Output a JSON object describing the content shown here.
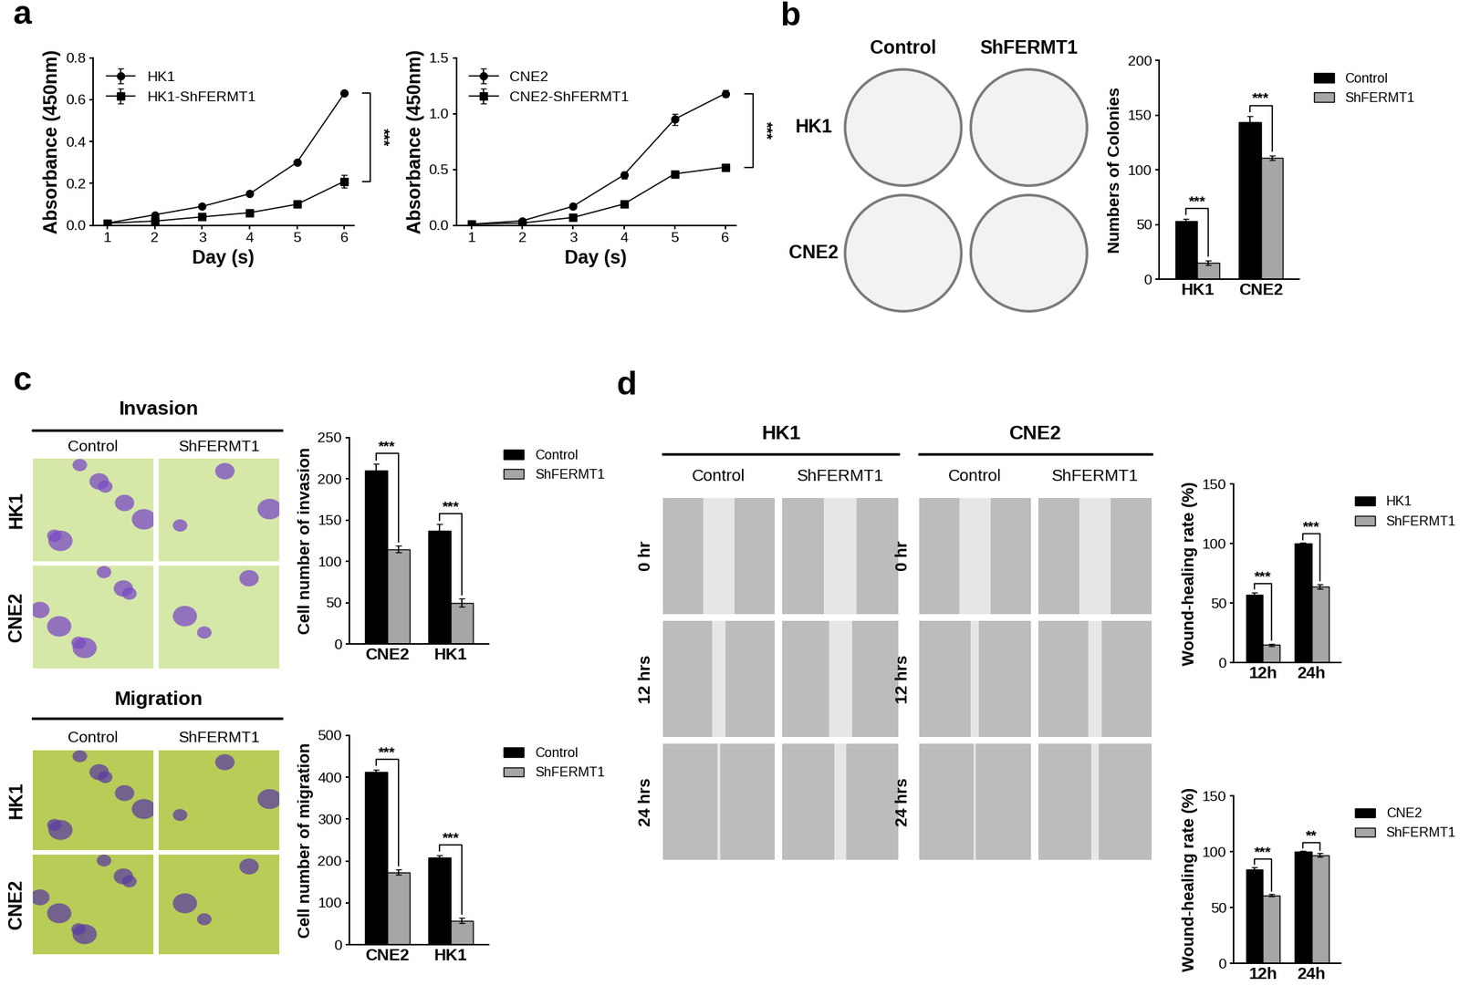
{
  "chart_data": [
    {
      "type": "line",
      "xlabel": "Day (s)",
      "ylabel": "Absorbance (450nm)",
      "x": [
        1,
        2,
        3,
        4,
        5,
        6
      ],
      "series": [
        {
          "name": "HK1",
          "color": "#000000",
          "marker": "circle",
          "values": [
            0.01,
            0.05,
            0.09,
            0.15,
            0.3,
            0.63
          ],
          "errors": [
            0,
            0,
            0,
            0,
            0.005,
            0.005
          ]
        },
        {
          "name": "HK1-ShFERMT1",
          "color": "#000000",
          "marker": "square",
          "values": [
            0.01,
            0.02,
            0.04,
            0.06,
            0.1,
            0.21
          ],
          "errors": [
            0,
            0,
            0,
            0,
            0,
            0.03
          ]
        }
      ],
      "xlim": [
        0.7,
        6.2
      ],
      "xticks": [
        1,
        2,
        3,
        4,
        5,
        6
      ],
      "ylim": [
        0,
        0.8
      ],
      "yticks": [
        {
          "value": 0,
          "label": "0.0"
        },
        {
          "value": 0.2,
          "label": "0.2"
        },
        {
          "value": 0.4,
          "label": "0.4"
        },
        {
          "value": 0.6,
          "label": "0.6"
        },
        {
          "value": 0.8,
          "label": "0.8"
        }
      ],
      "legend": "upper left",
      "significance": "***"
    },
    {
      "type": "line",
      "xlabel": "Day (s)",
      "ylabel": "Absorbance (450nm)",
      "x": [
        1,
        2,
        3,
        4,
        5,
        6
      ],
      "series": [
        {
          "name": "CNE2",
          "color": "#000000",
          "marker": "circle",
          "values": [
            0.01,
            0.04,
            0.17,
            0.45,
            0.95,
            1.18
          ],
          "errors": [
            0,
            0,
            0.01,
            0.03,
            0.05,
            0.03
          ]
        },
        {
          "name": "CNE2-ShFERMT1",
          "color": "#000000",
          "marker": "square",
          "values": [
            0.01,
            0.02,
            0.07,
            0.19,
            0.46,
            0.52
          ],
          "errors": [
            0,
            0,
            0,
            0.01,
            0.01,
            0.01
          ]
        }
      ],
      "xlim": [
        0.7,
        6.2
      ],
      "xticks": [
        1,
        2,
        3,
        4,
        5,
        6
      ],
      "ylim": [
        0,
        1.5
      ],
      "yticks": [
        {
          "value": 0,
          "label": "0.0"
        },
        {
          "value": 0.5,
          "label": "0.5"
        },
        {
          "value": 1.0,
          "label": "1.0"
        },
        {
          "value": 1.5,
          "label": "1.5"
        }
      ],
      "legend": "upper left",
      "significance": "***"
    },
    {
      "type": "bar",
      "ylabel": "Numbers of Colonies",
      "categories": [
        "HK1",
        "CNE2"
      ],
      "series": [
        {
          "name": "Control",
          "color": "#000000",
          "values": [
            53,
            144
          ],
          "errors": [
            2,
            5
          ]
        },
        {
          "name": "ShFERMT1",
          "color": "#a6a6a6",
          "values": [
            15,
            111
          ],
          "errors": [
            2,
            2
          ]
        }
      ],
      "ylim": [
        0,
        200
      ],
      "yticks": [
        0,
        50,
        100,
        150,
        200
      ],
      "legend": "right",
      "significance": [
        "***",
        "***"
      ]
    },
    {
      "type": "bar",
      "ylabel": "Cell number of invasion",
      "categories": [
        "CNE2",
        "HK1"
      ],
      "series": [
        {
          "name": "Control",
          "color": "#000000",
          "values": [
            210,
            137
          ],
          "errors": [
            8,
            8
          ]
        },
        {
          "name": "ShFERMT1",
          "color": "#a6a6a6",
          "values": [
            115,
            50
          ],
          "errors": [
            4,
            5
          ]
        }
      ],
      "ylim": [
        0,
        250
      ],
      "yticks": [
        0,
        50,
        100,
        150,
        200,
        250
      ],
      "legend": "right",
      "significance": [
        "***",
        "***"
      ]
    },
    {
      "type": "bar",
      "ylabel": "Cell number of migration",
      "categories": [
        "CNE2",
        "HK1"
      ],
      "series": [
        {
          "name": "Control",
          "color": "#000000",
          "values": [
            413,
            208
          ],
          "errors": [
            5,
            6
          ]
        },
        {
          "name": "ShFERMT1",
          "color": "#a6a6a6",
          "values": [
            173,
            58
          ],
          "errors": [
            6,
            6
          ]
        }
      ],
      "ylim": [
        0,
        500
      ],
      "yticks": [
        0,
        100,
        200,
        300,
        400,
        500
      ],
      "legend": "right",
      "significance": [
        "***",
        "***"
      ]
    },
    {
      "type": "bar",
      "ylabel": "Wound-healing rate (%)",
      "categories": [
        "12h",
        "24h"
      ],
      "series": [
        {
          "name": "HK1",
          "color": "#000000",
          "values": [
            57,
            100
          ],
          "errors": [
            2,
            0.5
          ]
        },
        {
          "name": "ShFERMT1",
          "color": "#a6a6a6",
          "values": [
            15,
            64
          ],
          "errors": [
            1,
            2
          ]
        }
      ],
      "ylim": [
        0,
        150
      ],
      "yticks": [
        0,
        50,
        100,
        150
      ],
      "legend": "right",
      "significance": [
        "***",
        "***"
      ]
    },
    {
      "type": "bar",
      "ylabel": "Wound-healing rate (%)",
      "categories": [
        "12h",
        "24h"
      ],
      "series": [
        {
          "name": "CNE2",
          "color": "#000000",
          "values": [
            84,
            100
          ],
          "errors": [
            2,
            0.5
          ]
        },
        {
          "name": "ShFERMT1",
          "color": "#a6a6a6",
          "values": [
            61,
            97
          ],
          "errors": [
            1,
            1.5
          ]
        }
      ],
      "ylim": [
        0,
        150
      ],
      "yticks": [
        0,
        50,
        100,
        150
      ],
      "legend": "right",
      "significance": [
        "***",
        "**"
      ]
    }
  ],
  "panel_labels": [
    "a",
    "b",
    "c",
    "d"
  ],
  "image_panels": [
    {
      "columns": [
        "Control",
        "ShFERMT1"
      ],
      "rows": [
        "HK1",
        "CNE2"
      ]
    },
    {
      "title": "Invasion",
      "columns": [
        "Control",
        "ShFERMT1"
      ],
      "rows": [
        "HK1",
        "CNE2"
      ]
    },
    {
      "title": "Migration",
      "columns": [
        "Control",
        "ShFERMT1"
      ],
      "rows": [
        "HK1",
        "CNE2"
      ]
    },
    {
      "groups": [
        {
          "name": "HK1",
          "columns": [
            "Control",
            "ShFERMT1"
          ]
        },
        {
          "name": "CNE2",
          "columns": [
            "Control",
            "ShFERMT1"
          ]
        }
      ],
      "rows": [
        "0 hr",
        "12 hrs",
        "24 hrs"
      ]
    }
  ]
}
